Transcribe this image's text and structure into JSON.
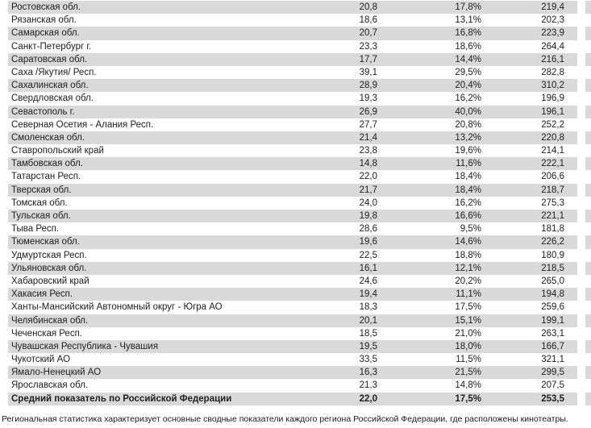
{
  "colors": {
    "stripe": "#d9d9d9",
    "background": "#ffffff",
    "text": "#202020"
  },
  "table": {
    "rows": [
      {
        "region": "Ростовская обл.",
        "values": [
          "20,8",
          "17,8%",
          "219,4"
        ]
      },
      {
        "region": "Рязанская обл.",
        "values": [
          "18,6",
          "13,1%",
          "202,3"
        ]
      },
      {
        "region": "Самарская обл.",
        "values": [
          "20,7",
          "16,8%",
          "223,9"
        ]
      },
      {
        "region": "Санкт-Петербург г.",
        "values": [
          "23,3",
          "18,6%",
          "264,4"
        ]
      },
      {
        "region": "Саратовская обл.",
        "values": [
          "17,7",
          "14,4%",
          "216,1"
        ]
      },
      {
        "region": "Саха /Якутия/ Респ.",
        "values": [
          "39,1",
          "29,5%",
          "282,8"
        ]
      },
      {
        "region": "Сахалинская обл.",
        "values": [
          "28,9",
          "20,4%",
          "310,2"
        ]
      },
      {
        "region": "Свердловская обл.",
        "values": [
          "19,3",
          "16,2%",
          "196,9"
        ]
      },
      {
        "region": "Севастополь г.",
        "values": [
          "26,9",
          "40,0%",
          "196,1"
        ]
      },
      {
        "region": "Северная Осетия - Алания Респ.",
        "values": [
          "27,7",
          "20,8%",
          "252,2"
        ]
      },
      {
        "region": "Смоленская обл.",
        "values": [
          "21,4",
          "13,2%",
          "220,8"
        ]
      },
      {
        "region": "Ставропольский край",
        "values": [
          "23,8",
          "19,6%",
          "214,1"
        ]
      },
      {
        "region": "Тамбовская обл.",
        "values": [
          "14,8",
          "11,6%",
          "222,1"
        ]
      },
      {
        "region": "Татарстан Респ.",
        "values": [
          "22,0",
          "18,4%",
          "206,6"
        ]
      },
      {
        "region": "Тверская обл.",
        "values": [
          "21,7",
          "18,4%",
          "218,7"
        ]
      },
      {
        "region": "Томская обл.",
        "values": [
          "24,0",
          "16,2%",
          "275,3"
        ]
      },
      {
        "region": "Тульская обл.",
        "values": [
          "19,8",
          "16,6%",
          "221,1"
        ]
      },
      {
        "region": "Тыва Респ.",
        "values": [
          "28,6",
          "9,5%",
          "181,8"
        ]
      },
      {
        "region": "Тюменская обл.",
        "values": [
          "19,6",
          "14,6%",
          "226,2"
        ]
      },
      {
        "region": "Удмуртская Респ.",
        "values": [
          "22,5",
          "18,8%",
          "180,9"
        ]
      },
      {
        "region": "Ульяновская обл.",
        "values": [
          "16,1",
          "12,1%",
          "218,5"
        ]
      },
      {
        "region": "Хабаровский край",
        "values": [
          "24,6",
          "20,2%",
          "265,0"
        ]
      },
      {
        "region": "Хакасия Респ.",
        "values": [
          "19,4",
          "11,1%",
          "194,8"
        ]
      },
      {
        "region": "Ханты-Мансийский Автономный округ - Югра АО",
        "values": [
          "18,3",
          "17,5%",
          "259,6"
        ]
      },
      {
        "region": "Челябинская обл.",
        "values": [
          "20,1",
          "15,1%",
          "199,1"
        ]
      },
      {
        "region": "Чеченская Респ.",
        "values": [
          "18,5",
          "21,0%",
          "263,1"
        ]
      },
      {
        "region": "Чувашская Республика - Чувашия",
        "values": [
          "19,5",
          "18,0%",
          "166,7"
        ]
      },
      {
        "region": "Чукотский АО",
        "values": [
          "33,5",
          "11,5%",
          "321,1"
        ]
      },
      {
        "region": "Ямало-Ненецкий АО",
        "values": [
          "16,3",
          "21,5%",
          "299,5"
        ]
      },
      {
        "region": "Ярославская обл.",
        "values": [
          "21,3",
          "14,8%",
          "207,5"
        ]
      }
    ],
    "summary": {
      "region": "Средний показатель по Российской Федерации",
      "values": [
        "22,0",
        "17,5%",
        "253,5"
      ]
    }
  },
  "footer": {
    "note": "Региональная статистика характеризует основные сводные показатели каждого региона Российской Федерации, где расположены кинотеатры."
  }
}
